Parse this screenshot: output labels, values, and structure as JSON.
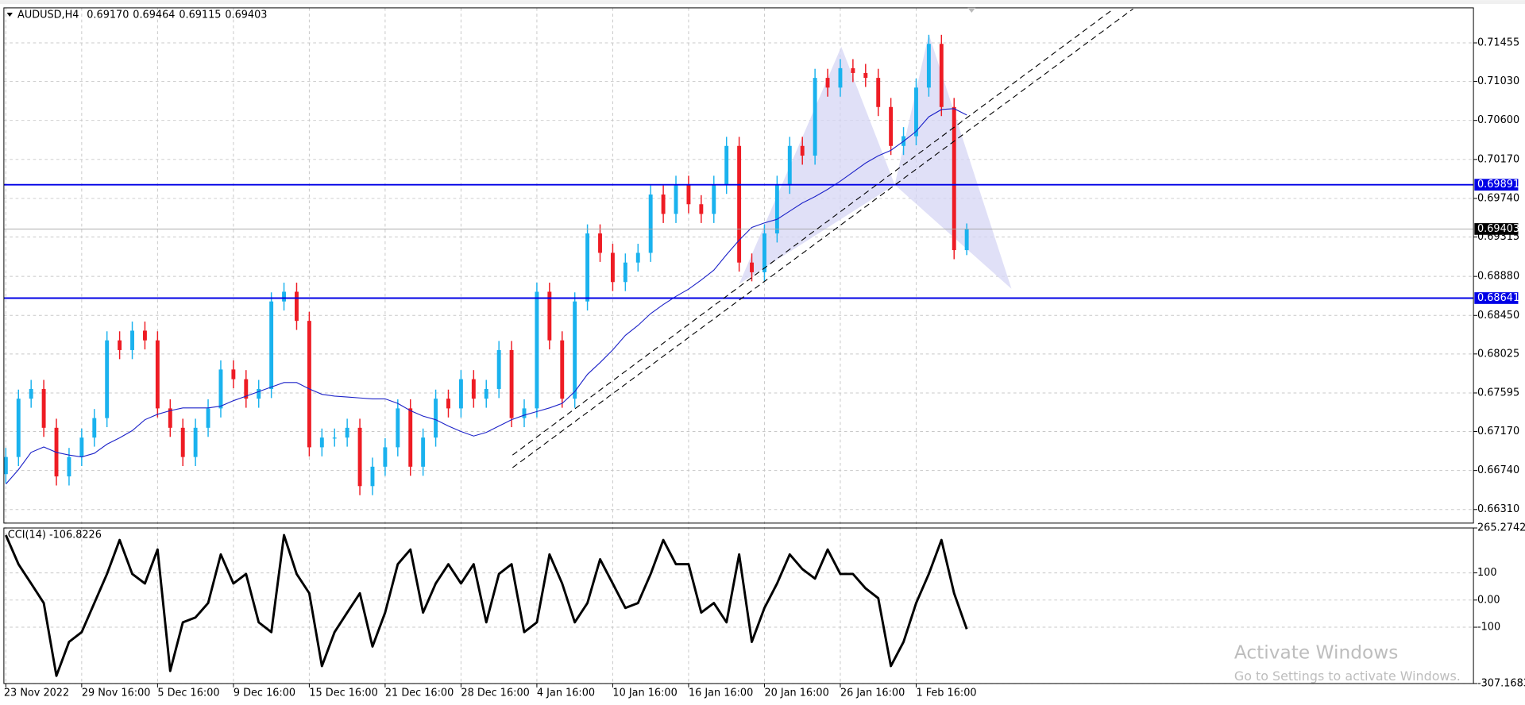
{
  "chart_data": [
    {
      "type": "candlestick",
      "quote": {
        "name": "AUDUSD,H4",
        "values": [
          0.6917,
          0.69464,
          0.69115,
          0.69403
        ],
        "value_labels": [
          "0.69170",
          "0.69464",
          "0.69115",
          "0.69403"
        ]
      },
      "categories": [
        "23 Nov 2022",
        null,
        null,
        null,
        null,
        null,
        "29 Nov 16:00",
        null,
        null,
        null,
        null,
        null,
        "5 Dec 16:00",
        null,
        null,
        null,
        null,
        null,
        "9 Dec 16:00",
        null,
        null,
        null,
        null,
        null,
        "15 Dec 16:00",
        null,
        null,
        null,
        null,
        null,
        "21 Dec 16:00",
        null,
        null,
        null,
        null,
        null,
        "28 Dec 16:00",
        null,
        null,
        null,
        null,
        null,
        "4 Jan 16:00",
        null,
        null,
        null,
        null,
        null,
        "10 Jan 16:00",
        null,
        null,
        null,
        null,
        null,
        "16 Jan 16:00",
        null,
        null,
        null,
        null,
        null,
        "20 Jan 16:00",
        null,
        null,
        null,
        null,
        null,
        "26 Jan 16:00",
        null,
        null,
        null,
        null,
        null,
        "1 Feb 16:00",
        null,
        null,
        null,
        null
      ],
      "open": [
        0.667,
        0.66889,
        0.67532,
        0.67639,
        0.67211,
        0.66675,
        0.66889,
        0.67103,
        0.67318,
        0.68175,
        0.68068,
        0.68282,
        0.68175,
        0.67425,
        0.67211,
        0.66889,
        0.67211,
        0.67425,
        0.67854,
        0.67747,
        0.67532,
        0.67639,
        0.68604,
        0.68711,
        0.6839,
        0.66996,
        0.67103,
        0.67103,
        0.67211,
        0.66568,
        0.66782,
        0.66996,
        0.67425,
        0.66782,
        0.67103,
        0.67532,
        0.67425,
        0.67747,
        0.67532,
        0.67639,
        0.68068,
        0.67318,
        0.67425,
        0.68711,
        0.68175,
        0.67532,
        0.68604,
        0.69354,
        0.6914,
        0.68818,
        0.69033,
        0.6914,
        0.69783,
        0.69569,
        0.6989,
        0.69676,
        0.69569,
        0.6989,
        0.70319,
        0.69033,
        0.68926,
        0.69354,
        0.6989,
        0.70319,
        0.70212,
        0.71069,
        0.70962,
        0.71176,
        0.71123,
        0.71069,
        0.70748,
        0.70319,
        0.70426,
        0.70962,
        0.71444,
        0.70748,
        0.6917
      ],
      "high": [
        0.66989,
        0.67632,
        0.67739,
        0.67739,
        0.67311,
        0.66989,
        0.67203,
        0.67418,
        0.68275,
        0.68275,
        0.68382,
        0.68382,
        0.68275,
        0.67525,
        0.67311,
        0.67311,
        0.67525,
        0.67954,
        0.67954,
        0.67847,
        0.67739,
        0.68704,
        0.68811,
        0.68811,
        0.6849,
        0.67203,
        0.67203,
        0.67311,
        0.67311,
        0.66882,
        0.67096,
        0.67525,
        0.67525,
        0.67203,
        0.67632,
        0.67632,
        0.67847,
        0.67847,
        0.67739,
        0.68168,
        0.68168,
        0.67525,
        0.68811,
        0.68811,
        0.68275,
        0.68704,
        0.69454,
        0.69454,
        0.6924,
        0.69133,
        0.6924,
        0.69883,
        0.69883,
        0.6999,
        0.6999,
        0.69776,
        0.6999,
        0.70419,
        0.70419,
        0.69133,
        0.69454,
        0.6999,
        0.70419,
        0.70419,
        0.71169,
        0.71169,
        0.71276,
        0.71276,
        0.71223,
        0.71169,
        0.70848,
        0.70526,
        0.71062,
        0.71544,
        0.71544,
        0.70848,
        0.69464
      ],
      "low": [
        0.666,
        0.66789,
        0.67432,
        0.67111,
        0.66575,
        0.66575,
        0.66789,
        0.67003,
        0.67218,
        0.67968,
        0.67968,
        0.68075,
        0.67325,
        0.67111,
        0.66789,
        0.66789,
        0.67111,
        0.67325,
        0.67647,
        0.67432,
        0.67432,
        0.67539,
        0.68504,
        0.6829,
        0.66896,
        0.66896,
        0.67003,
        0.67003,
        0.66468,
        0.66468,
        0.66682,
        0.66896,
        0.66682,
        0.66682,
        0.67003,
        0.67325,
        0.67325,
        0.67432,
        0.67432,
        0.67539,
        0.67218,
        0.67218,
        0.67325,
        0.68075,
        0.67432,
        0.67432,
        0.68504,
        0.6904,
        0.68718,
        0.68718,
        0.68933,
        0.6904,
        0.69469,
        0.69469,
        0.69576,
        0.69469,
        0.69469,
        0.6979,
        0.68933,
        0.68826,
        0.68826,
        0.69254,
        0.6979,
        0.70112,
        0.70112,
        0.70862,
        0.70862,
        0.71023,
        0.70969,
        0.70648,
        0.70219,
        0.70219,
        0.70326,
        0.70862,
        0.70648,
        0.6907,
        0.69115
      ],
      "close": [
        0.66889,
        0.67532,
        0.67639,
        0.67211,
        0.66675,
        0.66889,
        0.67103,
        0.67318,
        0.68175,
        0.68068,
        0.68282,
        0.68175,
        0.67425,
        0.67211,
        0.66889,
        0.67211,
        0.67425,
        0.67854,
        0.67747,
        0.67532,
        0.67639,
        0.68604,
        0.68711,
        0.6839,
        0.66996,
        0.67103,
        0.67103,
        0.67211,
        0.66568,
        0.66782,
        0.66996,
        0.67425,
        0.66782,
        0.67103,
        0.67532,
        0.67425,
        0.67747,
        0.67532,
        0.67639,
        0.68068,
        0.67318,
        0.67425,
        0.68711,
        0.68175,
        0.67532,
        0.68604,
        0.69354,
        0.6914,
        0.68818,
        0.69033,
        0.6914,
        0.69783,
        0.69569,
        0.6989,
        0.69676,
        0.69569,
        0.6989,
        0.70319,
        0.69033,
        0.68926,
        0.69354,
        0.6989,
        0.70319,
        0.70212,
        0.71069,
        0.70962,
        0.71176,
        0.71123,
        0.71069,
        0.70748,
        0.70319,
        0.70426,
        0.70962,
        0.71444,
        0.70748,
        0.6917,
        0.69403
      ],
      "up_color": "#1ab2ee",
      "down_color": "#ee1c24",
      "ma": {
        "color": "#1c22c8",
        "values": [
          0.6659,
          0.6675,
          0.6694,
          0.67,
          0.6694,
          0.6691,
          0.6689,
          0.6693,
          0.6703,
          0.671,
          0.6718,
          0.673,
          0.6736,
          0.674,
          0.6743,
          0.6743,
          0.6743,
          0.6745,
          0.6751,
          0.6756,
          0.6761,
          0.6766,
          0.6771,
          0.6771,
          0.6764,
          0.6758,
          0.6756,
          0.6755,
          0.6754,
          0.6753,
          0.6753,
          0.6748,
          0.674,
          0.6734,
          0.673,
          0.6723,
          0.6717,
          0.6712,
          0.6716,
          0.6723,
          0.673,
          0.6735,
          0.6739,
          0.6743,
          0.6748,
          0.6761,
          0.678,
          0.6793,
          0.6807,
          0.6823,
          0.6834,
          0.6847,
          0.6857,
          0.6866,
          0.6874,
          0.6884,
          0.6895,
          0.6912,
          0.6928,
          0.6942,
          0.6947,
          0.6951,
          0.696,
          0.6969,
          0.6976,
          0.6984,
          0.6993,
          0.7003,
          0.7013,
          0.7021,
          0.7027,
          0.7037,
          0.7048,
          0.7064,
          0.7072,
          0.7073,
          0.7066
        ]
      },
      "levels": {
        "color": "#0000e6",
        "values": [
          0.69891,
          0.68641
        ]
      },
      "ylim": [
        0.6616,
        0.71841
      ],
      "yticks": [
        0.71455,
        {
          "value": 0.7103,
          "label": "0.71030"
        },
        {
          "value": 0.706,
          "label": "0.70600"
        },
        {
          "value": 0.7017,
          "label": "0.70170"
        },
        {
          "value": 0.6974,
          "label": "0.69740"
        },
        0.69315,
        {
          "value": 0.6888,
          "label": "0.68880"
        },
        {
          "value": 0.6845,
          "label": "0.68450"
        },
        0.68025,
        0.67595,
        {
          "value": 0.6717,
          "label": "0.67170"
        },
        {
          "value": 0.6674,
          "label": "0.66740"
        },
        {
          "value": 0.6631,
          "label": "0.66310"
        }
      ],
      "grid": true
    },
    {
      "type": "line",
      "name": "CCI(14)",
      "color": "#000000",
      "values": [
        239,
        132,
        61,
        -11,
        -279,
        -154,
        -118,
        -11,
        96,
        221,
        96,
        61,
        186,
        -261,
        -82,
        -64,
        -11,
        168,
        61,
        96,
        -82,
        -118,
        239,
        96,
        25,
        -243,
        -118,
        -46,
        25,
        -171,
        -46,
        132,
        186,
        -46,
        61,
        132,
        61,
        132,
        -82,
        96,
        132,
        -118,
        -82,
        168,
        61,
        -82,
        -11,
        150,
        61,
        -29,
        -11,
        96,
        221,
        132,
        132,
        -46,
        -11,
        -82,
        168,
        -154,
        -29,
        61,
        168,
        114,
        79,
        186,
        96,
        96,
        43,
        7,
        -243,
        -154,
        -11,
        96,
        221,
        25,
        -106.8226
      ],
      "ylim": [
        -307.1683,
        265.2742
      ],
      "yticks": [
        265.2742,
        100,
        {
          "value": 0,
          "label": "0.00"
        },
        -100,
        -307.1683
      ],
      "grid": true
    }
  ],
  "watermark": {
    "title": "Activate Windows",
    "subtitle": "Go to Settings to activate Windows."
  }
}
